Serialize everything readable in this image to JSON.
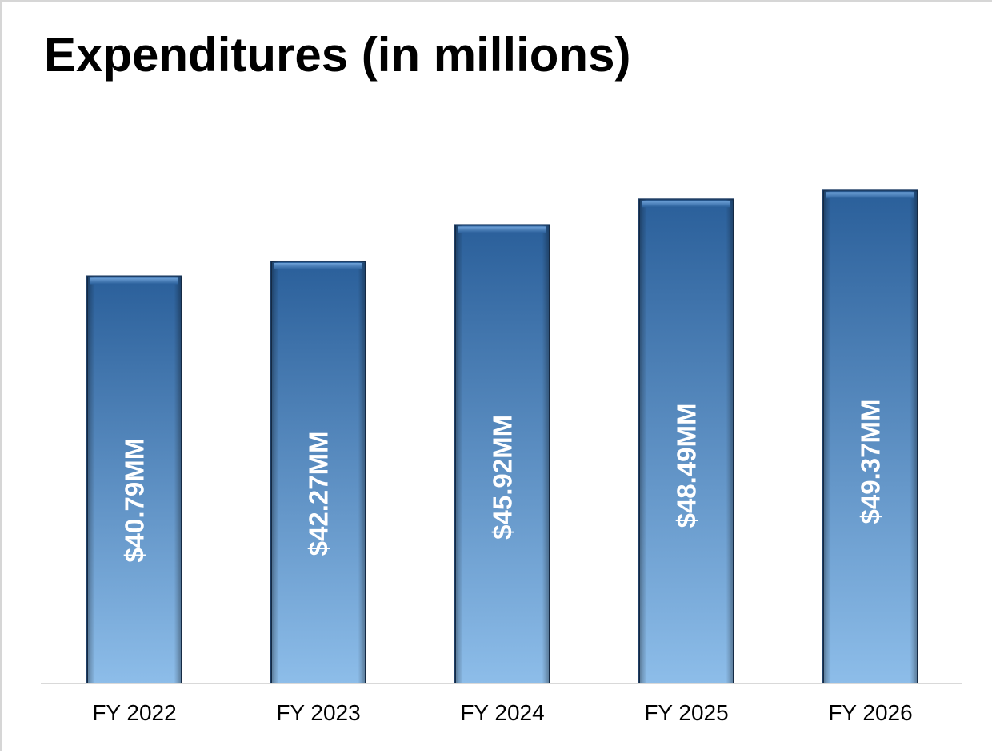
{
  "chart_data": {
    "type": "bar",
    "title": "Expenditures (in millions)",
    "categories": [
      "FY 2022",
      "FY 2023",
      "FY 2024",
      "FY 2025",
      "FY 2026"
    ],
    "values": [
      40.79,
      42.27,
      45.92,
      48.49,
      49.37
    ],
    "value_labels": [
      "$40.79MM",
      "$42.27MM",
      "$45.92MM",
      "$48.49MM",
      "$49.37MM"
    ],
    "ylim": [
      0,
      58.2
    ],
    "grid": false,
    "legend": "none",
    "colors": {
      "bar_top": "#2a5f9a",
      "bar_bottom": "#8dbde9",
      "bar_edge": "#1f3f66",
      "axis": "#d9d9d9"
    }
  }
}
